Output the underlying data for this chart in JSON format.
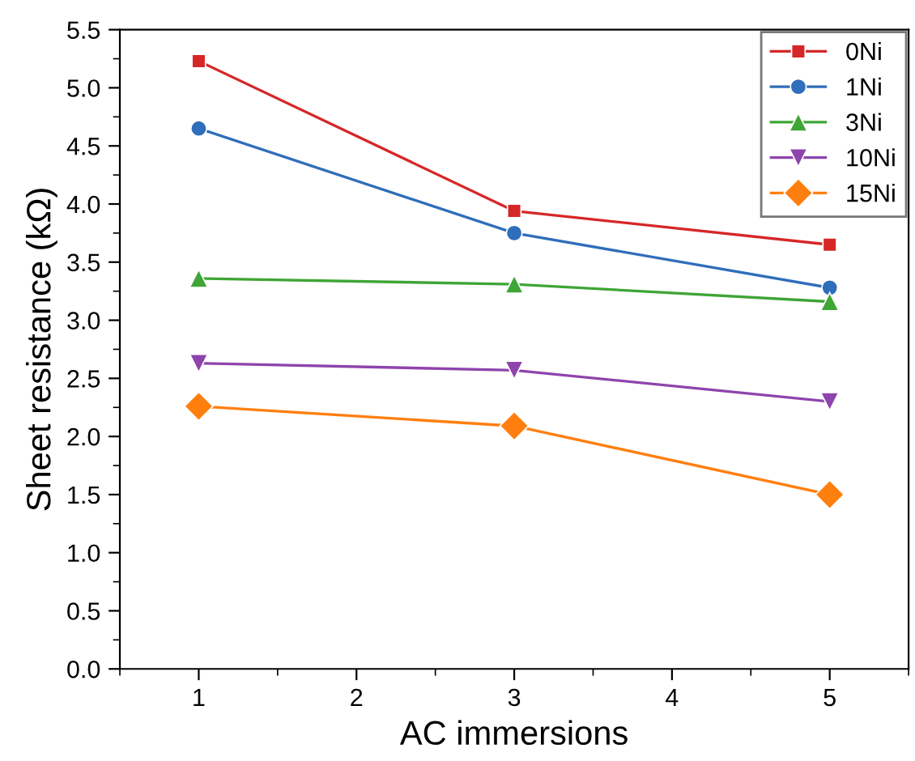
{
  "chart_data": {
    "type": "line",
    "xlabel": "AC immersions",
    "ylabel": "Sheet resistance (kΩ)",
    "x": [
      1,
      3,
      5
    ],
    "xlim": [
      0.5,
      5.5
    ],
    "xticks": [
      1,
      2,
      3,
      4,
      5
    ],
    "ylim": [
      0,
      5.5
    ],
    "yticks": [
      {
        "value": 0,
        "label": "0.0"
      },
      {
        "value": 0.5,
        "label": "0.5"
      },
      {
        "value": 1,
        "label": "1.0"
      },
      {
        "value": 1.5,
        "label": "1.5"
      },
      {
        "value": 2,
        "label": "2.0"
      },
      {
        "value": 2.5,
        "label": "2.5"
      },
      {
        "value": 3,
        "label": "3.0"
      },
      {
        "value": 3.5,
        "label": "3.5"
      },
      {
        "value": 4,
        "label": "4.0"
      },
      {
        "value": 4.5,
        "label": "4.5"
      },
      {
        "value": 5,
        "label": "5.0"
      },
      {
        "value": 5.5,
        "label": "5.5"
      }
    ],
    "legend": "top right",
    "grid": false,
    "line_style": "solid",
    "series": [
      {
        "name": "0Ni",
        "color": "#d62728",
        "marker": "square",
        "values": [
          5.23,
          3.94,
          3.65
        ]
      },
      {
        "name": "1Ni",
        "color": "#2f6eba",
        "marker": "circle",
        "values": [
          4.65,
          3.75,
          3.28
        ]
      },
      {
        "name": "3Ni",
        "color": "#3fa535",
        "marker": "triangle",
        "values": [
          3.36,
          3.31,
          3.16
        ]
      },
      {
        "name": "10Ni",
        "color": "#8e44ad",
        "marker": "triangle_down",
        "values": [
          2.63,
          2.57,
          2.3
        ]
      },
      {
        "name": "15Ni",
        "color": "#ff7f0e",
        "marker": "diamond",
        "values": [
          2.26,
          2.09,
          1.5
        ]
      }
    ]
  }
}
